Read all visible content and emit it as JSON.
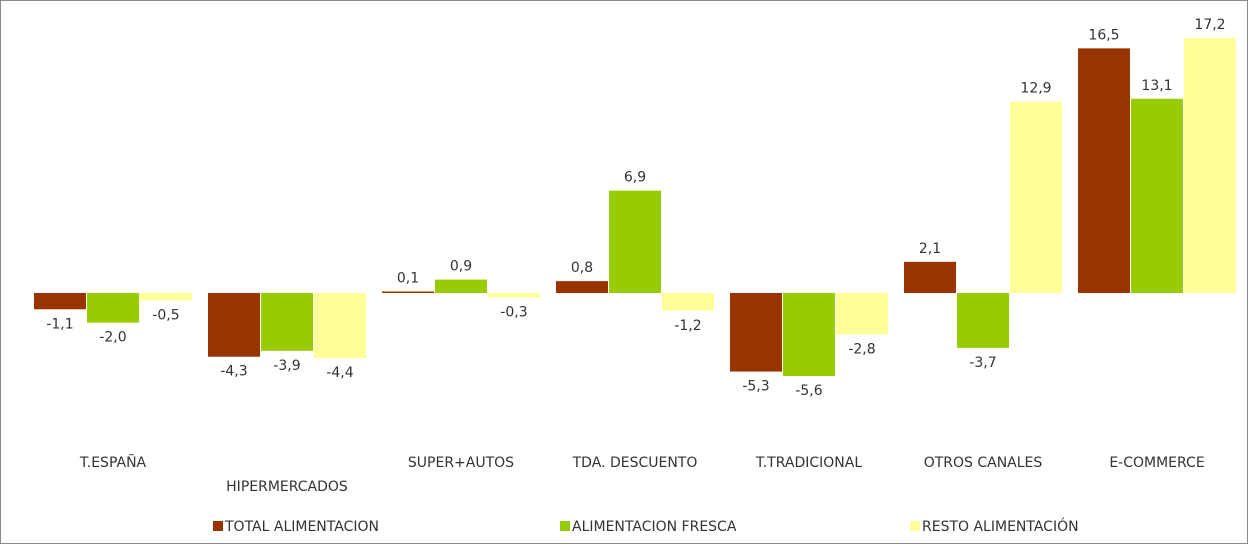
{
  "chart_data": {
    "type": "bar",
    "categories": [
      "T.ESPAÑA",
      "HIPERMERCADOS",
      "SUPER+AUTOS",
      "TDA. DESCUENTO",
      "T.TRADICIONAL",
      "OTROS CANALES",
      "E-COMMERCE"
    ],
    "series": [
      {
        "name": "TOTAL ALIMENTACION",
        "color": "#993300",
        "values": [
          -1.1,
          -4.3,
          0.1,
          0.8,
          -5.3,
          2.1,
          16.5
        ],
        "value_labels": [
          "-1,1",
          "-4,3",
          "0,1",
          "0,8",
          "-5,3",
          "2,1",
          "16,5"
        ]
      },
      {
        "name": "ALIMENTACION FRESCA",
        "color": "#99cc00",
        "values": [
          -2.0,
          -3.9,
          0.9,
          6.9,
          -5.6,
          -3.7,
          13.1
        ],
        "value_labels": [
          "-2,0",
          "-3,9",
          "0,9",
          "6,9",
          "-5,6",
          "-3,7",
          "13,1"
        ]
      },
      {
        "name": "RESTO ALIMENTACIÓN",
        "color": "#ffff99",
        "values": [
          -0.5,
          -4.4,
          -0.3,
          -1.2,
          -2.8,
          12.9,
          17.2
        ],
        "value_labels": [
          "-0,5",
          "-4,4",
          "-0,3",
          "-1,2",
          "-2,8",
          "12,9",
          "17,2"
        ]
      }
    ],
    "legend": "bottom"
  }
}
